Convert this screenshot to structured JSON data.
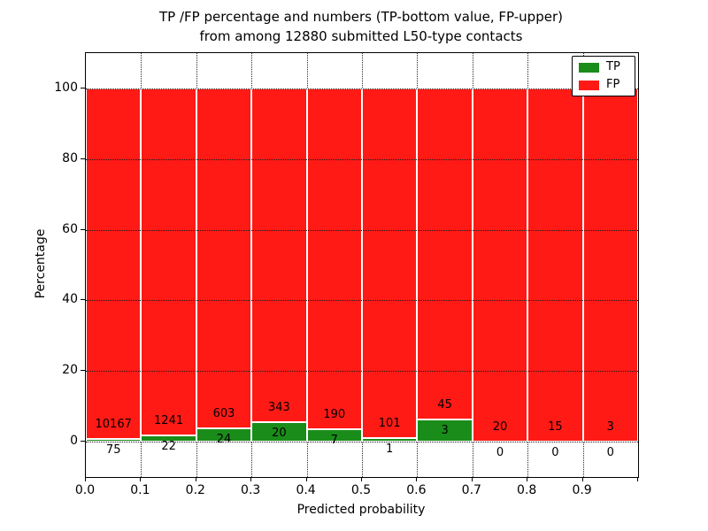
{
  "title": {
    "line1": "TP /FP percentage and numbers (TP-bottom value, FP-upper)",
    "line2": "from among 12880 submitted L50-type contacts"
  },
  "x_axis": {
    "label": "Predicted probability",
    "tick_labels": [
      "0.0",
      "0.1",
      "0.2",
      "0.3",
      "0.4",
      "0.5",
      "0.6",
      "0.7",
      "0.8",
      "0.9"
    ]
  },
  "y_axis": {
    "label": "Percentage",
    "tick_labels": [
      "0",
      "20",
      "40",
      "60",
      "80",
      "100"
    ],
    "tick_values": [
      0,
      20,
      40,
      60,
      80,
      100
    ]
  },
  "legend": {
    "items": [
      {
        "label": "TP",
        "color": "#1a8c1a"
      },
      {
        "label": "FP",
        "color": "#ff1a15"
      }
    ]
  },
  "colors": {
    "tp": "#1a8c1a",
    "fp": "#ff1a15",
    "bar_edge": "#ffffff",
    "grid": "#1a1a1a",
    "text": "#000000"
  },
  "chart_data": {
    "type": "bar",
    "stacked": true,
    "normalized_to_percent": true,
    "title": "TP /FP percentage and numbers (TP-bottom value, FP-upper) from among 12880 submitted L50-type contacts",
    "xlabel": "Predicted probability",
    "ylabel": "Percentage",
    "xlim": [
      0.0,
      1.0
    ],
    "ylim": [
      -10,
      110
    ],
    "grid": "dotted",
    "legend_position": "upper right",
    "bin_starts": [
      0.0,
      0.1,
      0.2,
      0.3,
      0.4,
      0.5,
      0.6,
      0.7,
      0.8,
      0.9
    ],
    "bin_width": 0.1,
    "total_submitted": 12880,
    "series": [
      {
        "name": "TP",
        "color": "#1a8c1a",
        "counts": [
          75,
          22,
          24,
          20,
          7,
          1,
          3,
          0,
          0,
          0
        ]
      },
      {
        "name": "FP",
        "color": "#ff1a15",
        "counts": [
          10167,
          1241,
          603,
          343,
          190,
          101,
          45,
          20,
          15,
          3
        ]
      }
    ],
    "tp_percent_of_bin": [
      0.73,
      1.74,
      3.83,
      5.51,
      3.55,
      0.98,
      6.25,
      0.0,
      0.0,
      0.0
    ],
    "fp_percent_of_bin": [
      99.27,
      98.26,
      96.17,
      94.49,
      96.45,
      99.02,
      93.75,
      100.0,
      100.0,
      100.0
    ]
  }
}
